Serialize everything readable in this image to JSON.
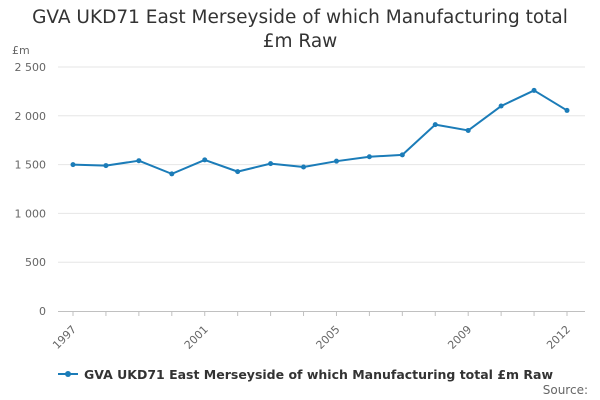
{
  "chart_data": {
    "type": "line",
    "title_lines": [
      "GVA UKD71 East Merseyside of which Manufacturing total",
      "£m Raw"
    ],
    "ylabel": "£m",
    "ylim": [
      0,
      2500
    ],
    "y_ticks": [
      0,
      500,
      1000,
      1500,
      2000,
      2500
    ],
    "y_tick_labels": [
      "0",
      "500",
      "1 000",
      "1 500",
      "2 000",
      "2 500"
    ],
    "x_tick_labels": [
      "1997",
      "2001",
      "2005",
      "2009",
      "2012"
    ],
    "x": [
      1997,
      1998,
      1999,
      2000,
      2001,
      2002,
      2003,
      2004,
      2005,
      2006,
      2007,
      2008,
      2009,
      2010,
      2011,
      2012
    ],
    "series": [
      {
        "name": "GVA UKD71 East Merseyside of which Manufacturing total £m Raw",
        "color": "#1b7cb8",
        "values": [
          1500,
          1490,
          1540,
          1405,
          1548,
          1428,
          1510,
          1475,
          1535,
          1580,
          1600,
          1910,
          1850,
          2100,
          2260,
          2055
        ]
      }
    ],
    "legend_position": "bottom-left",
    "source_label": "Source:"
  }
}
